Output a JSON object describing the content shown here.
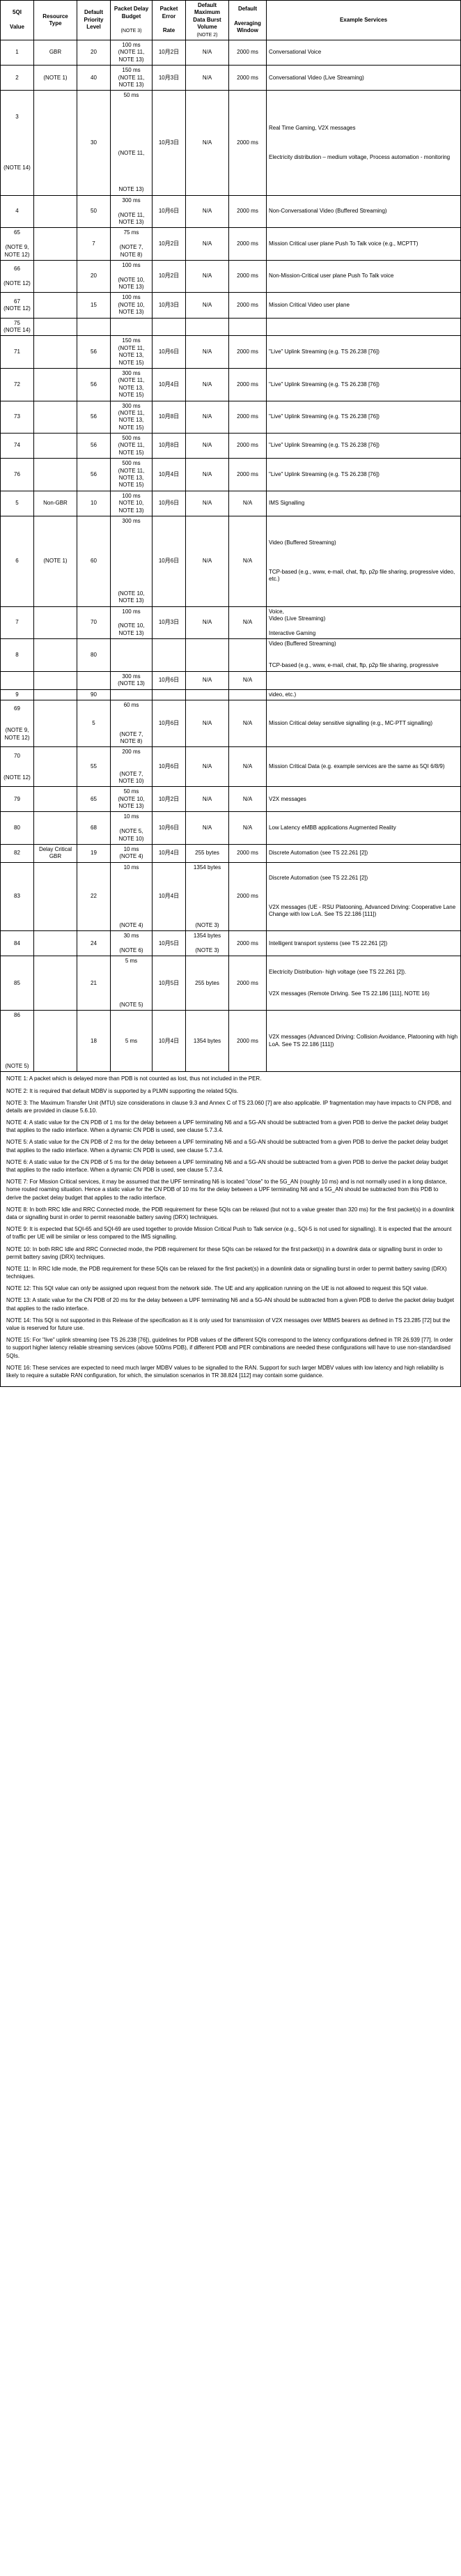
{
  "headers": {
    "c1a": "5QI",
    "c1b": "Value",
    "c2": "Resource Type",
    "c3a": "Default Priority Level",
    "c4a": "Packet Delay Budget",
    "c4b": "(NOTE 3)",
    "c5a": "Packet Error",
    "c5b": "Rate",
    "c6a": "Default Maximum Data Burst Volume",
    "c6b": "(NOTE 2)",
    "c7a": "Default",
    "c7b": "Averaging Window",
    "c8": "Example Services"
  },
  "rows": [
    {
      "sqi": "1",
      "rt": "GBR",
      "pri": "20",
      "pdb": "100 ms\n(NOTE 11,\nNOTE 13)",
      "per": "10月2日",
      "mdbv": "N/A",
      "aw": "2000 ms",
      "ex": "Conversational Voice"
    },
    {
      "sqi": "2",
      "rt": "(NOTE 1)",
      "pri": "40",
      "pdb": "150 ms\n(NOTE 11,\nNOTE 13)",
      "per": "10月3日",
      "mdbv": "N/A",
      "aw": "2000 ms",
      "ex": "Conversational Video (Live Streaming)"
    },
    {
      "sqi": "3\n\n\n\n\n\n\n(NOTE 14)",
      "rt": "",
      "pri": "30",
      "pdb": "50 ms\n\n\n\n\n\n\n\n(NOTE 11,\n\n\n\n\nNOTE 13)",
      "per": "10月3日",
      "mdbv": "N/A",
      "aw": "2000 ms",
      "ex": "Real Time Gaming, V2X messages\n\n\n\nElectricity distribution – medium voltage, Process automation - monitoring"
    },
    {
      "sqi": "4",
      "rt": "",
      "pri": "50",
      "pdb": "300 ms\n\n(NOTE 11,\nNOTE 13)",
      "per": "10月6日",
      "mdbv": "N/A",
      "aw": "2000 ms",
      "ex": "Non-Conversational Video (Buffered Streaming)"
    },
    {
      "sqi": "65\n\n(NOTE 9,\nNOTE 12)",
      "rt": "",
      "pri": "7",
      "pdb": "75 ms\n\n(NOTE 7,\nNOTE 8)",
      "per": "10月2日",
      "mdbv": "N/A",
      "aw": "2000 ms",
      "ex": "Mission Critical user plane Push To Talk voice (e.g., MCPTT)"
    },
    {
      "sqi": "66\n\n(NOTE 12)",
      "rt": "",
      "pri": "20",
      "pdb": "100 ms\n\n(NOTE 10,\nNOTE 13)",
      "per": "10月2日",
      "mdbv": "N/A",
      "aw": "2000 ms",
      "ex": "Non-Mission-Critical user plane Push To Talk voice"
    },
    {
      "sqi": "67\n(NOTE 12)",
      "rt": "",
      "pri": "15",
      "pdb": "100 ms\n(NOTE 10,\nNOTE 13)",
      "per": "10月3日",
      "mdbv": "N/A",
      "aw": "2000 ms",
      "ex": "Mission Critical Video user plane"
    },
    {
      "sqi": "75\n(NOTE 14)",
      "rt": "",
      "pri": "",
      "pdb": "",
      "per": "",
      "mdbv": "",
      "aw": "",
      "ex": ""
    },
    {
      "sqi": "71",
      "rt": "",
      "pri": "56",
      "pdb": "150 ms\n(NOTE 11,\nNOTE 13,\nNOTE 15)",
      "per": "10月6日",
      "mdbv": "N/A",
      "aw": "2000 ms",
      "ex": "\"Live\" Uplink Streaming (e.g. TS 26.238 [76])"
    },
    {
      "sqi": "72",
      "rt": "",
      "pri": "56",
      "pdb": "300 ms\n(NOTE 11,\nNOTE 13,\nNOTE 15)",
      "per": "10月4日",
      "mdbv": "N/A",
      "aw": "2000 ms",
      "ex": "\"Live\" Uplink Streaming (e.g. TS 26.238 [76])"
    },
    {
      "sqi": "73",
      "rt": "",
      "pri": "56",
      "pdb": "300 ms\n(NOTE 11,\nNOTE 13,\nNOTE 15)",
      "per": "10月8日",
      "mdbv": "N/A",
      "aw": "2000 ms",
      "ex": "\"Live\" Uplink Streaming (e.g. TS 26.238 [76])"
    },
    {
      "sqi": "74",
      "rt": "",
      "pri": "56",
      "pdb": "500 ms\n(NOTE 11,\nNOTE 15)",
      "per": "10月8日",
      "mdbv": "N/A",
      "aw": "2000 ms",
      "ex": "\"Live\" Uplink Streaming (e.g. TS 26.238 [76])"
    },
    {
      "sqi": "76",
      "rt": "",
      "pri": "56",
      "pdb": "500 ms\n(NOTE 11,\nNOTE 13,\nNOTE 15)",
      "per": "10月4日",
      "mdbv": "N/A",
      "aw": "2000 ms",
      "ex": "\"Live\" Uplink Streaming (e.g. TS 26.238 [76])"
    },
    {
      "sqi": "5",
      "rt": "Non-GBR",
      "pri": "10",
      "pdb": "100 ms\nNOTE 10,\nNOTE 13)",
      "per": "10月6日",
      "mdbv": "N/A",
      "aw": "N/A",
      "ex": "IMS Signalling"
    },
    {
      "sqi": "6",
      "rt": "(NOTE 1)",
      "pri": "60",
      "pdb": "300 ms\n\n\n\n\n\n\n\n\n\n(NOTE 10,\nNOTE 13)",
      "per": "10月6日",
      "mdbv": "N/A",
      "aw": "N/A",
      "ex": "Video (Buffered Streaming)\n\n\n\nTCP-based (e.g., www, e-mail, chat, ftp, p2p file sharing, progressive video, etc.)"
    },
    {
      "sqi": "7",
      "rt": "",
      "pri": "70",
      "pdb": "100 ms\n\n(NOTE 10,\nNOTE 13)",
      "per": "10月3日",
      "mdbv": "N/A",
      "aw": "N/A",
      "ex": "Voice,\nVideo (Live Streaming)\n\nInteractive Gaming"
    },
    {
      "sqi": "8",
      "rt": "",
      "pri": "80",
      "pdb": "",
      "per": "",
      "mdbv": "",
      "aw": "",
      "ex": "Video (Buffered Streaming)\n\n\nTCP-based (e.g., www, e-mail, chat, ftp, p2p file sharing, progressive"
    },
    {
      "sqi": "",
      "rt": "",
      "pri": "",
      "pdb": "300 ms\n(NOTE 13)",
      "per": "10月6日",
      "mdbv": "N/A",
      "aw": "N/A",
      "ex": ""
    },
    {
      "sqi": "9",
      "rt": "",
      "pri": "90",
      "pdb": "",
      "per": "",
      "mdbv": "",
      "aw": "",
      "ex": "video, etc.)"
    },
    {
      "sqi": "69\n\n\n(NOTE 9,\nNOTE 12)",
      "rt": "",
      "pri": "5",
      "pdb": "60 ms\n\n\n\n(NOTE 7,\nNOTE 8)",
      "per": "10月6日",
      "mdbv": "N/A",
      "aw": "N/A",
      "ex": "Mission Critical delay sensitive signalling (e.g., MC-PTT signalling)"
    },
    {
      "sqi": "70\n\n\n(NOTE 12)",
      "rt": "",
      "pri": "55",
      "pdb": "200 ms\n\n\n(NOTE 7,\nNOTE 10)",
      "per": "10月6日",
      "mdbv": "N/A",
      "aw": "N/A",
      "ex": "Mission Critical Data (e.g. example services are the same as 5QI 6/8/9)"
    },
    {
      "sqi": "79",
      "rt": "",
      "pri": "65",
      "pdb": "50 ms\n(NOTE 10,\nNOTE 13)",
      "per": "10月2日",
      "mdbv": "N/A",
      "aw": "N/A",
      "ex": "V2X messages"
    },
    {
      "sqi": "80",
      "rt": "",
      "pri": "68",
      "pdb": "10 ms\n\n(NOTE 5,\nNOTE 10)",
      "per": "10月6日",
      "mdbv": "N/A",
      "aw": "N/A",
      "ex": "Low Latency eMBB applications Augmented Reality"
    },
    {
      "sqi": "82",
      "rt": "Delay Critical GBR",
      "pri": "19",
      "pdb": "10 ms\n(NOTE 4)",
      "per": "10月4日",
      "mdbv": "255 bytes",
      "aw": "2000 ms",
      "ex": "Discrete Automation (see TS 22.261 [2])"
    },
    {
      "sqi": "83",
      "rt": "",
      "pri": "22",
      "pdb": "10 ms\n\n\n\n\n\n\n\n(NOTE 4)",
      "per": "10月4日",
      "mdbv": "1354 bytes\n\n\n\n\n\n\n\n(NOTE 3)",
      "aw": "2000 ms",
      "ex": "Discrete Automation (see TS 22.261 [2])\n\n\n\nV2X messages (UE - RSU Platooning, Advanced Driving: Cooperative Lane Change with low LoA. See TS 22.186 [111])"
    },
    {
      "sqi": "84",
      "rt": "",
      "pri": "24",
      "pdb": "30 ms\n\n(NOTE 6)",
      "per": "10月5日",
      "mdbv": "1354 bytes\n\n(NOTE 3)",
      "aw": "2000 ms",
      "ex": "Intelligent transport systems (see TS 22.261 [2])"
    },
    {
      "sqi": "85",
      "rt": "",
      "pri": "21",
      "pdb": "5 ms\n\n\n\n\n\n(NOTE 5)",
      "per": "10月5日",
      "mdbv": "255 bytes",
      "aw": "2000 ms",
      "ex": "Electricity Distribution- high voltage (see TS 22.261 [2]).\n\n\nV2X messages (Remote Driving. See TS 22.186 [111], NOTE 16)"
    },
    {
      "sqi": "86\n\n\n\n\n\n\n(NOTE 5)",
      "rt": "",
      "pri": "18",
      "pdb": "5 ms",
      "per": "10月4日",
      "mdbv": "1354 bytes",
      "aw": "2000 ms",
      "ex": "V2X messages (Advanced Driving: Collision Avoidance, Platooning with high LoA. See TS 22.186 [111])"
    }
  ],
  "notes": [
    "NOTE 1: A packet which is delayed more than PDB is not counted as lost, thus not included in the PER.",
    "NOTE 2: It is required that default MDBV is supported by a PLMN supporting the related 5QIs.",
    "NOTE 3: The Maximum Transfer Unit (MTU) size considerations in clause 9.3 and Annex C of TS 23.060 [7] are also applicable. IP fragmentation may have impacts to CN PDB, and details are provided in clause 5.6.10.",
    "NOTE 4: A static value for the CN PDB of 1 ms for the delay between a UPF terminating N6 and a 5G-AN should be subtracted from a given PDB to derive the packet delay budget that applies to the radio interface. When a dynamic CN PDB is used, see clause 5.7.3.4.",
    "NOTE 5: A static value for the CN PDB of 2 ms for the delay between a UPF terminating N6 and a 5G-AN should be subtracted from a given PDB to derive the packet delay budget that applies to the radio interface. When a dynamic CN PDB is used, see clause 5.7.3.4.",
    "NOTE 6: A static value for the CN PDB of 5 ms for the delay between a UPF terminating N6 and a 5G-AN should be subtracted from a given PDB to derive the packet delay budget that applies to the radio interface. When a dynamic CN PDB is used, see clause 5.7.3.4.",
    "NOTE 7: For Mission Critical services, it may be assumed that the UPF terminating N6 is located \"close\" to the 5G_AN (roughly 10 ms) and is not normally used in a long distance, home routed roaming situation. Hence a static value for the CN PDB of 10 ms for the delay between a UPF terminating N6 and a 5G_AN should be subtracted from this PDB to derive the packet delay budget that applies to the radio interface.",
    "NOTE 8: In both RRC Idle and RRC Connected mode, the PDB requirement for these 5QIs can be relaxed (but not to a value greater than 320 ms) for the first packet(s) in a downlink data or signalling burst in order to permit reasonable battery saving (DRX) techniques.",
    "NOTE 9: It is expected that 5QI-65 and 5QI-69 are used together to provide Mission Critical Push to Talk service (e.g., 5QI-5 is not used for signalling). It is expected that the amount of traffic per UE will be similar or less compared to the IMS signalling.",
    "NOTE 10: In both RRC Idle and RRC Connected mode, the PDB requirement for these 5QIs can be relaxed for the first packet(s) in a downlink data or signalling burst in order to permit battery saving (DRX) techniques.",
    "NOTE 11: In RRC Idle mode, the PDB requirement for these 5QIs can be relaxed for the first packet(s) in a downlink data or signalling burst in order to permit battery saving (DRX) techniques.",
    "NOTE 12: This 5QI value can only be assigned upon request from the network side. The UE and any application running on the UE is not allowed to request this 5QI value.",
    "NOTE 13: A static value for the CN PDB of 20 ms for the delay between a UPF terminating N6 and a 5G-AN should be subtracted from a given PDB to derive the packet delay budget that applies to the radio interface.",
    "NOTE 14: This 5QI is not supported in this Release of the specification as it is only used for transmission of V2X messages over MBMS bearers as defined in TS 23.285 [72] but the value is reserved for future use.",
    "NOTE 15: For \"live\" uplink streaming (see TS 26.238 [76]), guidelines for PDB values of the different 5QIs correspond to the latency configurations defined in TR 26.939 [77]. In order to support higher latency reliable streaming services (above 500ms PDB), if different PDB and PER combinations are needed these configurations will have to use non-standardised 5QIs.",
    "NOTE 16: These services are expected to need much larger MDBV values to be signalled to the RAN. Support for such larger MDBV values with low latency and high reliability is likely to require a suitable RAN configuration, for which, the simulation scenarios in TR 38.824 [112] may contain some guidance."
  ]
}
